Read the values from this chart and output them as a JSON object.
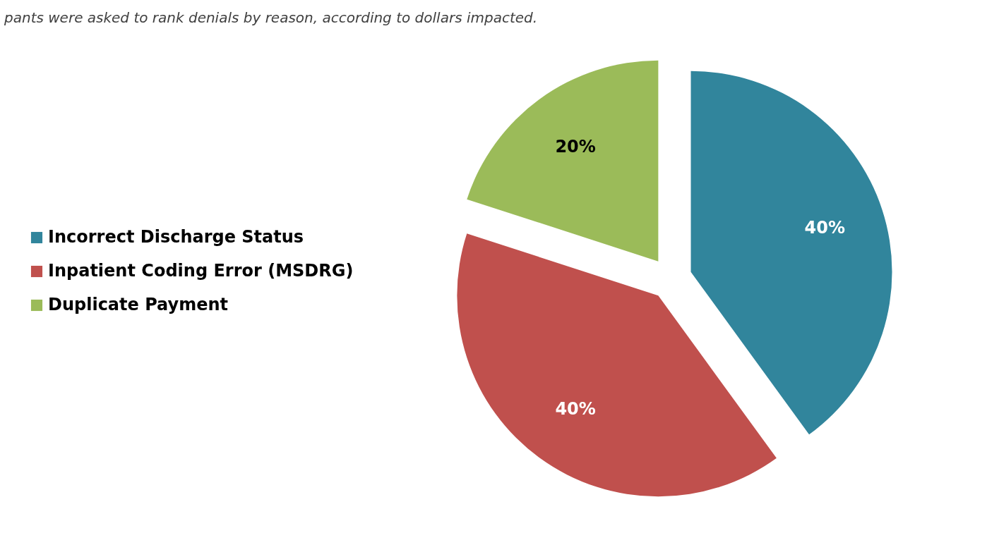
{
  "chart_data": {
    "type": "pie",
    "categories": [
      "Incorrect Discharge Status",
      "Inpatient Coding Error (MSDRG)",
      "Duplicate Payment"
    ],
    "values": [
      40,
      40,
      20
    ],
    "colors": [
      "#31859c",
      "#c0504d",
      "#9bbb59"
    ],
    "value_labels": [
      "40%",
      "40%",
      "20%"
    ],
    "legend": "left",
    "annotations": [
      "pants were asked to rank denials by reason, according to dollars impacted."
    ]
  }
}
